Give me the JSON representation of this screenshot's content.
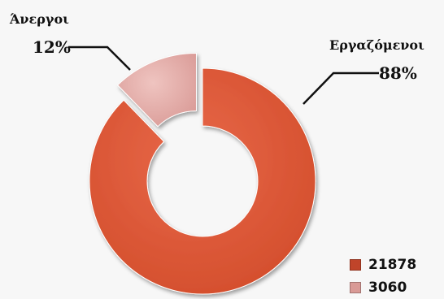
{
  "chart_data": {
    "type": "donut",
    "title": "",
    "slices": [
      {
        "name": "Εργαζόμενοι",
        "value": 21878,
        "percent_label": "88%",
        "color": "#d24c2a",
        "highlight": "#e8684a",
        "exploded": false
      },
      {
        "name": "Άνεργοι",
        "value": 3060,
        "percent_label": "12%",
        "color": "#d99a96",
        "highlight": "#efc4c0",
        "exploded": true
      }
    ],
    "legend": {
      "position": "bottom-right",
      "items": [
        {
          "label": "21878",
          "color": "#c0442a"
        },
        {
          "label": "3060",
          "color": "#d99a96"
        }
      ]
    }
  }
}
